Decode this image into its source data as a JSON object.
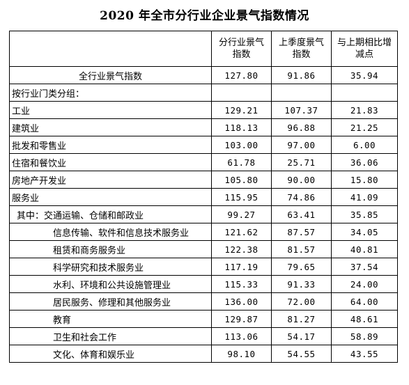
{
  "title": "2020 年全市分行业企业景气指数情况",
  "headers": {
    "col1": "分行业景气指数",
    "col2": "上季度景气指数",
    "col3": "与上期相比增减点"
  },
  "rows": [
    {
      "label": "全行业景气指数",
      "style": "center",
      "v1": "127.80",
      "v2": "91.86",
      "v3": "35.94"
    },
    {
      "label": "按行业门类分组：",
      "style": "lv0",
      "v1": "",
      "v2": "",
      "v3": ""
    },
    {
      "label": "工业",
      "style": "lv0",
      "v1": "129.21",
      "v2": "107.37",
      "v3": "21.83"
    },
    {
      "label": "建筑业",
      "style": "lv0",
      "v1": "118.13",
      "v2": "96.88",
      "v3": "21.25"
    },
    {
      "label": "批发和零售业",
      "style": "lv0",
      "v1": "103.00",
      "v2": "97.00",
      "v3": "6.00"
    },
    {
      "label": "住宿和餐饮业",
      "style": "lv0",
      "v1": "61.78",
      "v2": "25.71",
      "v3": "36.06"
    },
    {
      "label": "房地产开发业",
      "style": "lv0",
      "v1": "105.80",
      "v2": "90.00",
      "v3": "15.80"
    },
    {
      "label": "服务业",
      "style": "lv0",
      "v1": "115.95",
      "v2": "74.86",
      "v3": "41.09"
    },
    {
      "label": "其中：交通运输、仓储和邮政业",
      "style": "lv1",
      "v1": "99.27",
      "v2": "63.41",
      "v3": "35.85"
    },
    {
      "label": "信息传输、软件和信息技术服务业",
      "style": "lv2",
      "v1": "121.62",
      "v2": "87.57",
      "v3": "34.05"
    },
    {
      "label": "租赁和商务服务业",
      "style": "lv2",
      "v1": "122.38",
      "v2": "81.57",
      "v3": "40.81"
    },
    {
      "label": "科学研究和技术服务业",
      "style": "lv2",
      "v1": "117.19",
      "v2": "79.65",
      "v3": "37.54"
    },
    {
      "label": "水利、环境和公共设施管理业",
      "style": "lv2",
      "v1": "115.33",
      "v2": "91.33",
      "v3": "24.00"
    },
    {
      "label": "居民服务、修理和其他服务业",
      "style": "lv2",
      "v1": "136.00",
      "v2": "72.00",
      "v3": "64.00"
    },
    {
      "label": "教育",
      "style": "lv2",
      "v1": "129.87",
      "v2": "81.27",
      "v3": "48.61"
    },
    {
      "label": "卫生和社会工作",
      "style": "lv2",
      "v1": "113.06",
      "v2": "54.17",
      "v3": "58.89"
    },
    {
      "label": "文化、体育和娱乐业",
      "style": "lv2",
      "v1": "98.10",
      "v2": "54.55",
      "v3": "43.55"
    }
  ]
}
